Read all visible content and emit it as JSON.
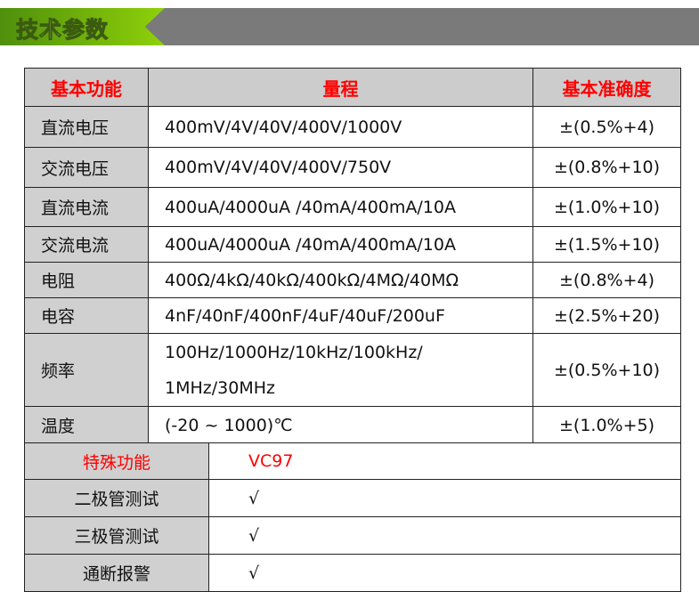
{
  "banner": {
    "title": "技术参数"
  },
  "table": {
    "headers": [
      "基本功能",
      "量程",
      "基本准确度"
    ],
    "rows": [
      {
        "func": "直流电压",
        "range": "400mV/4V/40V/400V/1000V",
        "acc": "±(0.5%+4)"
      },
      {
        "func": "交流电压",
        "range": "400mV/4V/40V/400V/750V",
        "acc": "±(0.8%+10)"
      },
      {
        "func": "直流电流",
        "range": "400uA/4000uA /40mA/400mA/10A",
        "acc": "±(1.0%+10)"
      },
      {
        "func": "交流电流",
        "range": "400uA/4000uA /40mA/400mA/10A",
        "acc": "±(1.5%+10)"
      },
      {
        "func": "电阻",
        "range": "400Ω/4kΩ/40kΩ/400kΩ/4MΩ/40MΩ",
        "acc": "±(0.8%+4)"
      },
      {
        "func": "电容",
        "range": "4nF/40nF/400nF/4uF/40uF/200uF",
        "acc": "±(2.5%+20)"
      },
      {
        "func": "频率",
        "range": "100Hz/1000Hz/10kHz/100kHz/",
        "range2": "1MHz/30MHz",
        "acc": "±(0.5%+10)"
      },
      {
        "func": "温度",
        "range": "(-20 ~ 1000)℃",
        "acc": "±(1.0%+5)"
      }
    ]
  },
  "special": {
    "header": "特殊功能",
    "model": "VC97",
    "rows": [
      {
        "func": "二极管测试",
        "val": "√"
      },
      {
        "func": "三极管测试",
        "val": "√"
      },
      {
        "func": "通断报警",
        "val": "√"
      }
    ]
  },
  "colors": {
    "banner_green": "#8fd10a",
    "banner_grey": "#7a7a7a",
    "header_text": "#ff0000",
    "label_bg": "#d0d0d0"
  }
}
